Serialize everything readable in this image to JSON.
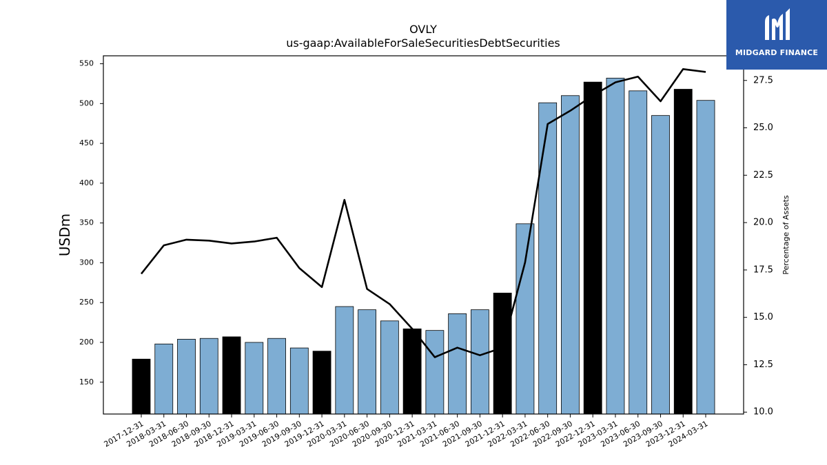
{
  "logo": {
    "text": "MIDGARD FINANCE"
  },
  "chart_data": {
    "type": "bar",
    "title": "OVLY",
    "subtitle": "us-gaap:AvailableForSaleSecuritiesDebtSecurities",
    "ylabel": "USDm",
    "y2label": "Percentage of Assets",
    "ylim": [
      110,
      560
    ],
    "y2lim": [
      9.9,
      28.8
    ],
    "yticks": [
      150,
      200,
      250,
      300,
      350,
      400,
      450,
      500,
      550
    ],
    "y2ticks": [
      "10.0",
      "12.5",
      "15.0",
      "17.5",
      "20.0",
      "22.5",
      "25.0",
      "27.5"
    ],
    "categories": [
      "2017-12-31",
      "2018-03-31",
      "2018-06-30",
      "2018-09-30",
      "2018-12-31",
      "2019-03-31",
      "2019-06-30",
      "2019-09-30",
      "2019-12-31",
      "2020-03-31",
      "2020-06-30",
      "2020-09-30",
      "2020-12-31",
      "2021-03-31",
      "2021-06-30",
      "2021-09-30",
      "2021-12-31",
      "2022-03-31",
      "2022-06-30",
      "2022-09-30",
      "2022-12-31",
      "2023-03-31",
      "2023-06-30",
      "2023-09-30",
      "2023-12-31",
      "2024-03-31"
    ],
    "series": [
      {
        "kind": "bar",
        "values": [
          179,
          198,
          204,
          205,
          207,
          200,
          205,
          193,
          189,
          245,
          241,
          227,
          217,
          215,
          236,
          241,
          262,
          349,
          501,
          510,
          527,
          532,
          516,
          485,
          518,
          504
        ],
        "colors": {
          "quarter": "#7eadd3",
          "year_end": "#000000"
        }
      },
      {
        "kind": "line",
        "axis": "right",
        "values": [
          17.3,
          18.8,
          19.1,
          19.05,
          18.9,
          19.0,
          19.2,
          17.6,
          16.6,
          21.2,
          16.5,
          15.7,
          14.4,
          12.9,
          13.4,
          13.0,
          13.4,
          17.9,
          25.2,
          25.9,
          26.7,
          27.4,
          27.7,
          26.4,
          28.1,
          27.95
        ],
        "color": "#000000"
      }
    ],
    "grid": false
  }
}
